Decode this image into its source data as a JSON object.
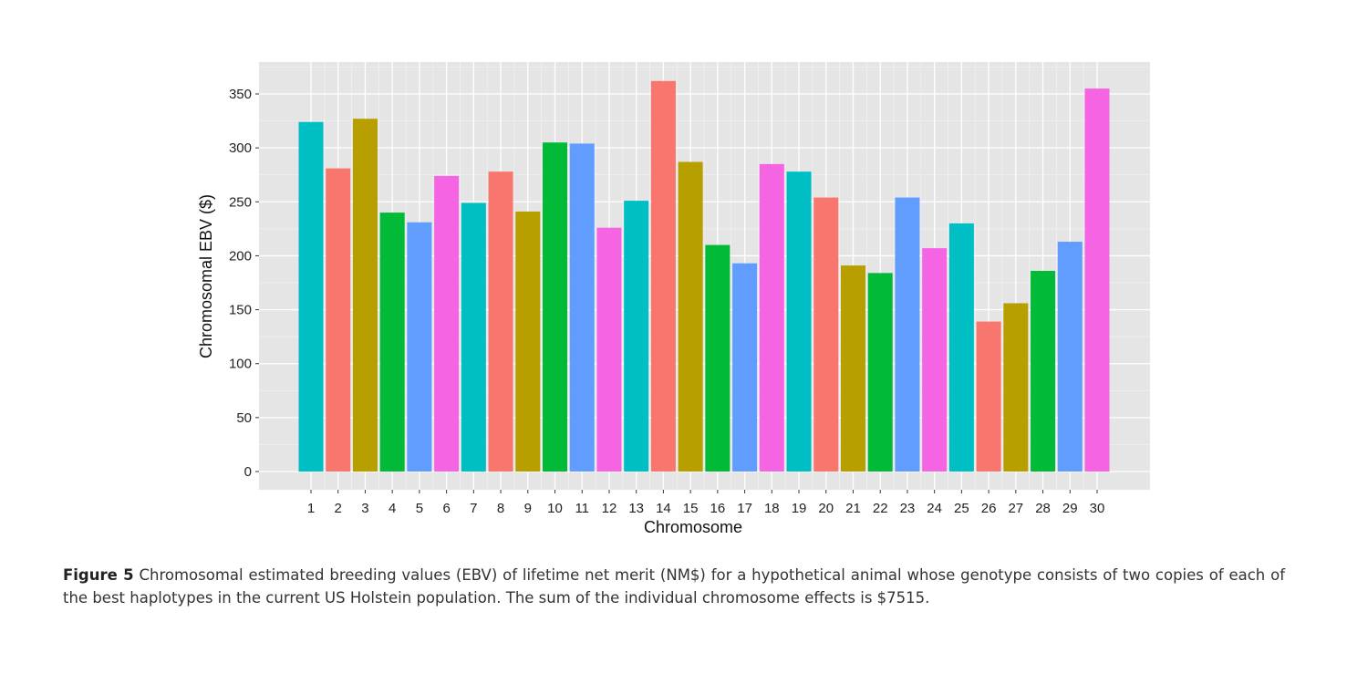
{
  "chart_data": {
    "type": "bar",
    "title": "",
    "xlabel": "Chromosome",
    "ylabel": "Chromosomal EBV ($)",
    "ylim": [
      0,
      375
    ],
    "yticks": [
      0,
      50,
      100,
      150,
      200,
      250,
      300,
      350
    ],
    "grid": true,
    "legend": "none",
    "categories": [
      "1",
      "2",
      "3",
      "4",
      "5",
      "6",
      "7",
      "8",
      "9",
      "10",
      "11",
      "12",
      "13",
      "14",
      "15",
      "16",
      "17",
      "18",
      "19",
      "20",
      "21",
      "22",
      "23",
      "24",
      "25",
      "26",
      "27",
      "28",
      "29",
      "30"
    ],
    "values": [
      324,
      281,
      327,
      240,
      231,
      274,
      249,
      278,
      241,
      305,
      304,
      226,
      251,
      362,
      287,
      210,
      193,
      285,
      278,
      254,
      191,
      184,
      254,
      207,
      230,
      139,
      156,
      186,
      213,
      355
    ],
    "palette": [
      "#00BFC4",
      "#F8766D",
      "#B79F00",
      "#00BA38",
      "#619CFF",
      "#F564E3"
    ],
    "background": "#E5E5E5"
  },
  "caption": {
    "label": "Figure 5",
    "text": " Chromosomal estimated breeding values (EBV) of lifetime net merit (NM$) for a hypothetical animal whose genotype consists of two copies of each of the best haplotypes in the current US Holstein population. The sum of the individual chromosome effects is $7515."
  }
}
